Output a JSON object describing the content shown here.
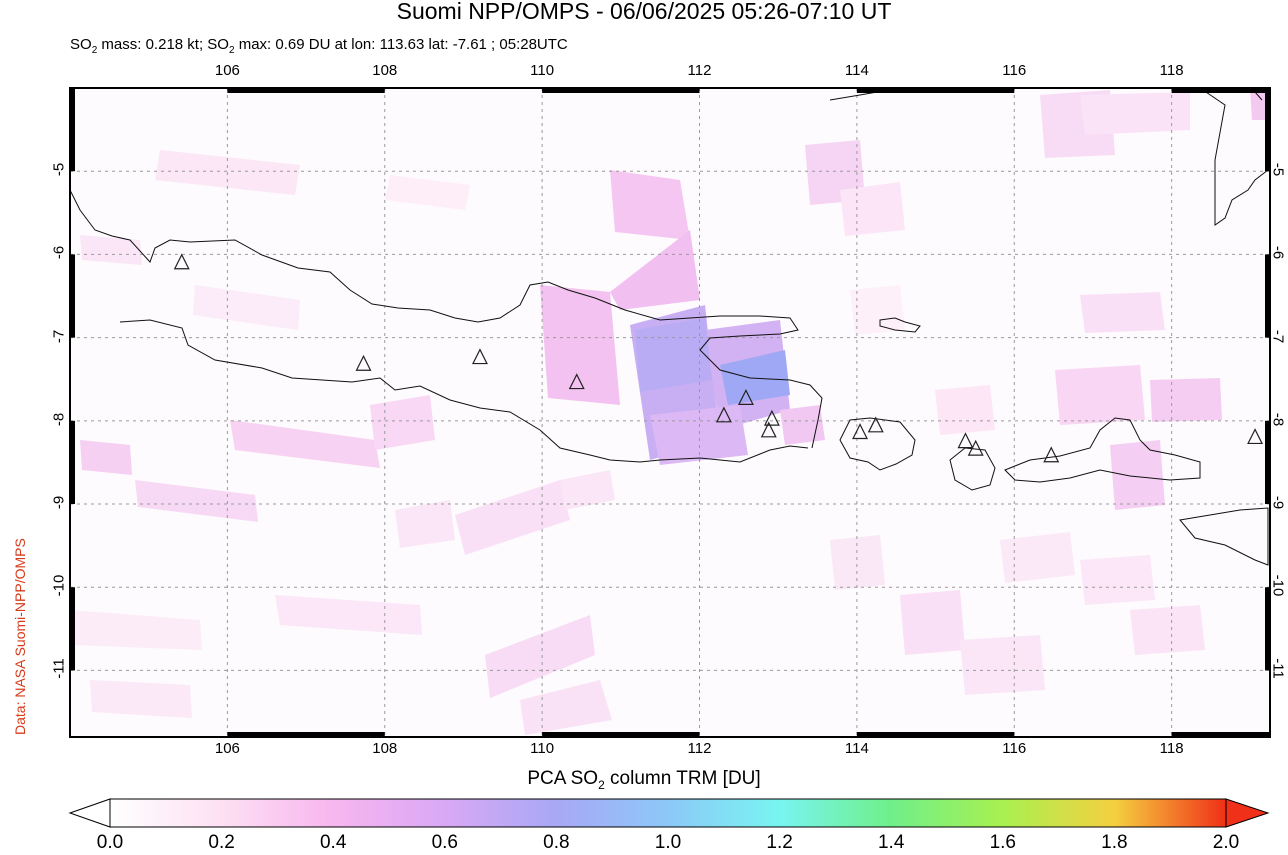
{
  "title": "Suomi NPP/OMPS - 06/06/2025 05:26-07:10 UT",
  "subtitle": {
    "prefix": "SO",
    "sub1": "2",
    "mid1": " mass: 0.218 kt; SO",
    "sub2": "2",
    "mid2": " max: 0.69 DU at lon: 113.63 lat: -7.61 ; 05:28UTC"
  },
  "credit": "Data: NASA Suomi-NPP/OMPS",
  "colorbar": {
    "label_prefix": "PCA SO",
    "label_sub": "2",
    "label_suffix": " column TRM [DU]",
    "ticks": [
      "0.0",
      "0.2",
      "0.4",
      "0.6",
      "0.8",
      "1.0",
      "1.2",
      "1.4",
      "1.6",
      "1.8",
      "2.0"
    ],
    "colors": [
      "#ffffff",
      "#fde0f3",
      "#f7b6ef",
      "#d9a8f5",
      "#a8a8f5",
      "#8cc8f8",
      "#78f5f0",
      "#6fef8a",
      "#a8f050",
      "#f5f040",
      "#f5a020",
      "#f03018"
    ]
  },
  "map": {
    "lon_ticks": [
      "106",
      "108",
      "110",
      "112",
      "114",
      "116",
      "118"
    ],
    "lat_ticks": [
      "-5",
      "-6",
      "-7",
      "-8",
      "-9",
      "-10",
      "-11"
    ],
    "lon_values": [
      106,
      108,
      110,
      112,
      114,
      116,
      118
    ],
    "lat_values": [
      -5,
      -6,
      -7,
      -8,
      -9,
      -10,
      -11
    ],
    "lon_range": [
      104.0,
      119.25
    ],
    "lat_range": [
      -11.8,
      -4.0
    ],
    "volcanoes": [
      {
        "lon": 105.42,
        "lat": -6.1
      },
      {
        "lon": 107.73,
        "lat": -7.32
      },
      {
        "lon": 109.21,
        "lat": -7.24
      },
      {
        "lon": 110.44,
        "lat": -7.54
      },
      {
        "lon": 112.31,
        "lat": -7.94
      },
      {
        "lon": 112.59,
        "lat": -7.73
      },
      {
        "lon": 112.92,
        "lat": -7.98
      },
      {
        "lon": 112.88,
        "lat": -8.12
      },
      {
        "lon": 114.04,
        "lat": -8.14
      },
      {
        "lon": 114.24,
        "lat": -8.06
      },
      {
        "lon": 115.38,
        "lat": -8.25
      },
      {
        "lon": 115.51,
        "lat": -8.34
      },
      {
        "lon": 116.47,
        "lat": -8.42
      },
      {
        "lon": 119.06,
        "lat": -8.2
      }
    ]
  }
}
